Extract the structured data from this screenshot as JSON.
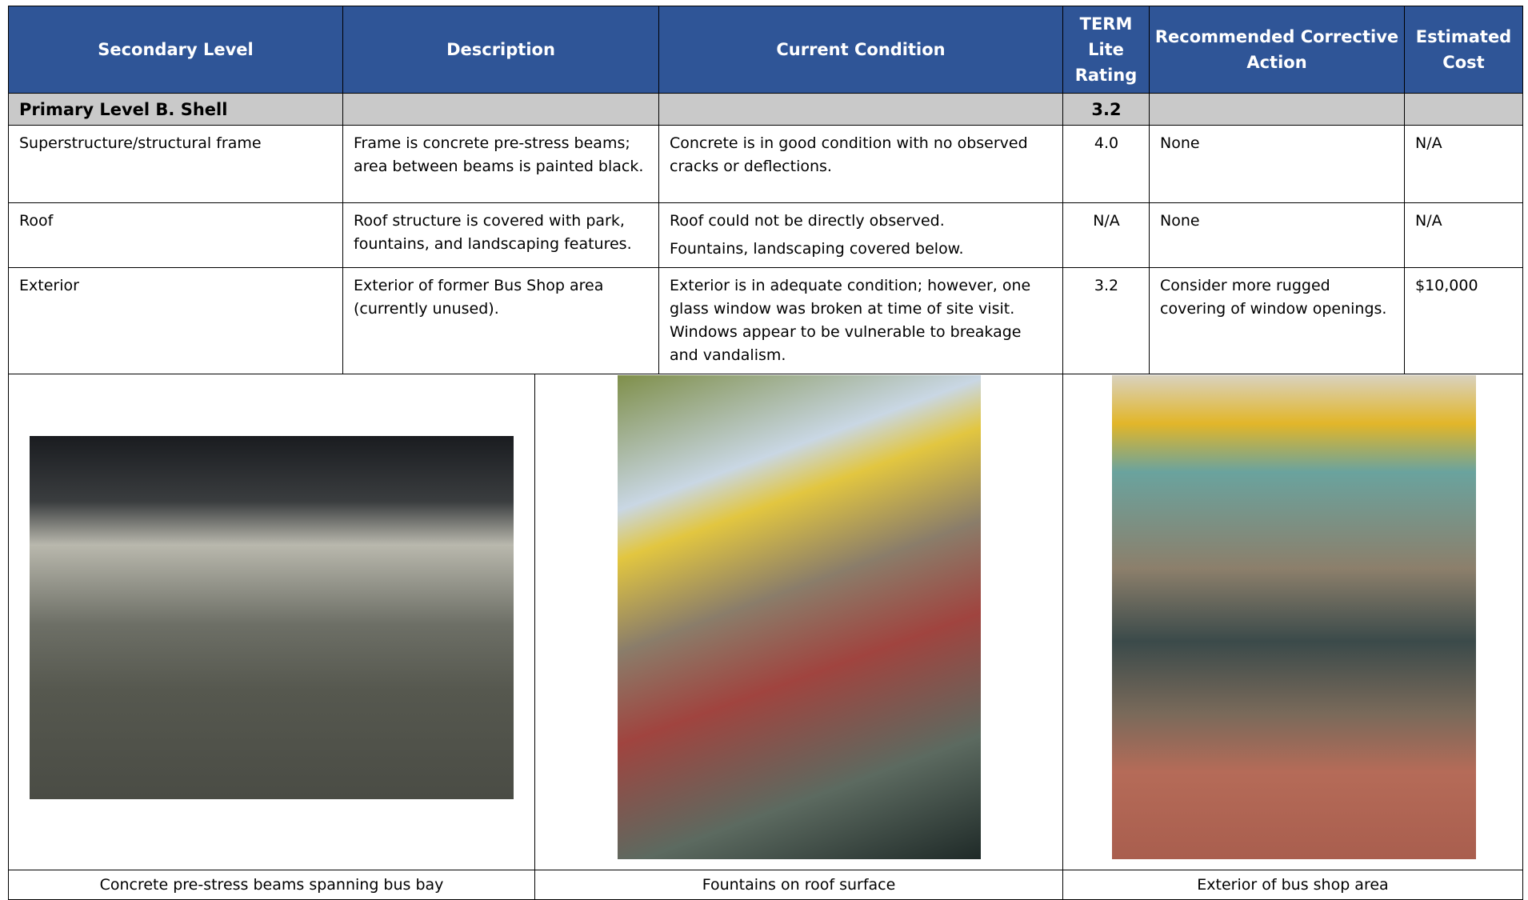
{
  "table": {
    "headers": [
      "Secondary Level",
      "Description",
      "Current Condition",
      "TERM Lite Rating",
      "Recommended Corrective Action",
      "Estimated Cost"
    ],
    "primary": {
      "label": "Primary Level B. Shell",
      "rating": "3.2"
    },
    "rows": [
      [
        "Superstructure/structural frame",
        "Frame is concrete pre-stress beams; area between beams is painted black.",
        [
          "Concrete is in good condition with no observed cracks or deflections."
        ],
        "4.0",
        "None",
        "N/A"
      ],
      [
        "Roof",
        "Roof structure is covered with park, fountains, and landscaping features.",
        [
          "Roof could not be directly observed.",
          "Fountains, landscaping covered below."
        ],
        "N/A",
        "None",
        "N/A"
      ],
      [
        "Exterior",
        "Exterior of former Bus Shop area (currently unused).",
        [
          "Exterior is in adequate condition; however, one glass window was broken at time of site visit. Windows appear to be vulnerable to breakage and vandalism."
        ],
        "3.2",
        "Consider more rugged covering of window openings.",
        "$10,000"
      ]
    ],
    "captions": [
      "Concrete pre-stress beams spanning bus bay",
      "Fountains on roof surface",
      "Exterior of bus shop area"
    ]
  }
}
